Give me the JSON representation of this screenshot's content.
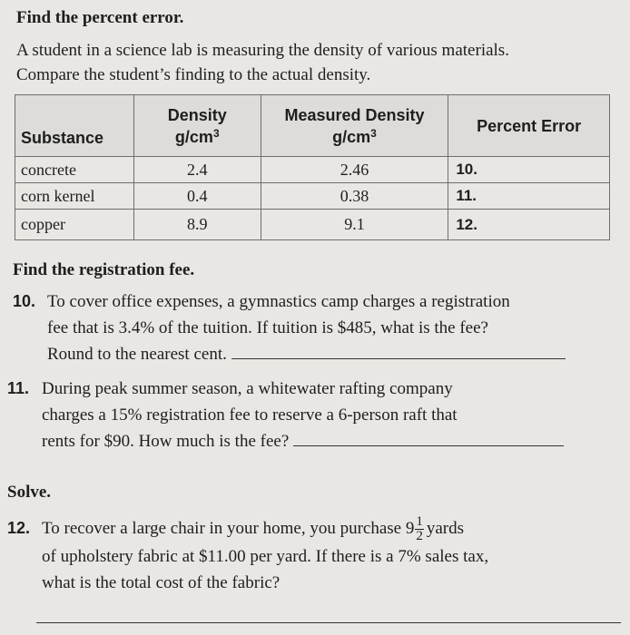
{
  "section1": {
    "heading": "Find the percent error.",
    "intro_line1": "A student in a science lab is measuring the density of various materials.",
    "intro_line2": "Compare the student’s finding to the actual density."
  },
  "table": {
    "headers": {
      "substance": "Substance",
      "density_line1": "Density",
      "density_unit": "g/cm",
      "measured_line1": "Measured Density",
      "measured_unit": "g/cm",
      "exponent": "3",
      "percent_error": "Percent Error"
    },
    "rows": [
      {
        "substance": "concrete",
        "density": "2.4",
        "measured": "2.46",
        "error_label": "10."
      },
      {
        "substance": "corn kernel",
        "density": "0.4",
        "measured": "0.38",
        "error_label": "11."
      },
      {
        "substance": "copper",
        "density": "8.9",
        "measured": "9.1",
        "error_label": "12."
      }
    ]
  },
  "section2": {
    "heading": "Find the registration fee.",
    "p10": {
      "number": "10.",
      "line1": "To cover office expenses, a gymnastics camp charges a registration",
      "line2": "fee that is 3.4% of the tuition. If tuition is $485, what is the fee?",
      "line3": "Round to the nearest cent."
    },
    "p11": {
      "number": "11.",
      "line1": "During peak summer season, a whitewater rafting company",
      "line2": "charges a 15% registration fee to reserve a 6-person raft that",
      "line3": "rents for $90. How much is the fee?"
    }
  },
  "section3": {
    "heading": "Solve.",
    "p12": {
      "number": "12.",
      "line1_a": "To recover a large chair in your home, you purchase 9",
      "frac_num": "1",
      "frac_den": "2",
      "line1_b": "yards",
      "line2": "of upholstery fabric at $11.00 per yard. If there is a 7% sales tax,",
      "line3": "what is the total cost of the fabric?"
    }
  }
}
